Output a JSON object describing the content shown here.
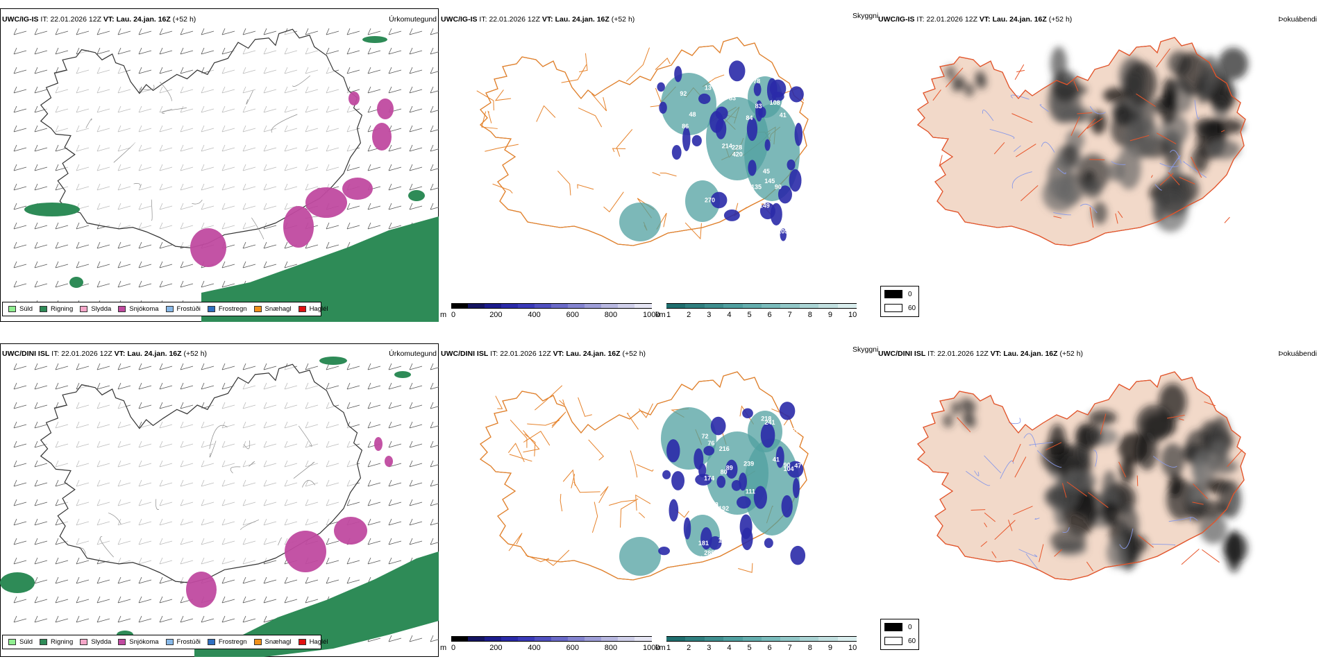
{
  "rows": [
    {
      "model": "UWC/IG-IS",
      "it_label": "IT:",
      "it_value": "22.01.2026 12Z",
      "vt_label": "VT:",
      "vt_value": "Lau. 24.jan. 16Z",
      "lead": "(+52 h)",
      "precip_title": "Úrkomutegund",
      "vis_title": "Skyggni",
      "fog_title": "Þokuábendi",
      "vis_numbers": [
        "214",
        "45",
        "83",
        "13",
        "130",
        "145",
        "149",
        "84",
        "108",
        "107",
        "41",
        "103",
        "80",
        "92",
        "420",
        "96",
        "83",
        "105",
        "228",
        "173",
        "270",
        "135",
        "86",
        "48",
        "52",
        "78",
        "90"
      ]
    },
    {
      "model": "UWC/DINI ISL",
      "it_label": "IT:",
      "it_value": "22.01.2026 12Z",
      "vt_label": "VT:",
      "vt_value": "Lau. 24.jan. 16Z",
      "lead": "(+52 h)",
      "precip_title": "Úrkomutegund",
      "vis_title": "Skyggni",
      "fog_title": "Þokuábendi",
      "vis_numbers": [
        "192",
        "181",
        "104",
        "76",
        "72",
        "162",
        "90",
        "130",
        "105",
        "89",
        "76",
        "108",
        "93",
        "174",
        "111",
        "104",
        "218",
        "216",
        "231",
        "239",
        "241",
        "285",
        "58",
        "47",
        "41",
        "90",
        "80",
        "127"
      ]
    }
  ],
  "precip_legend": [
    {
      "label": "Súld",
      "color": "#90ee90"
    },
    {
      "label": "Rigning",
      "color": "#2e8b57"
    },
    {
      "label": "Slydda",
      "color": "#f4a6c8"
    },
    {
      "label": "Snjókoma",
      "color": "#c04aa0"
    },
    {
      "label": "Frostúði",
      "color": "#87b8e8"
    },
    {
      "label": "Frostregn",
      "color": "#2f6fc0"
    },
    {
      "label": "Snæhagl",
      "color": "#f0901a"
    },
    {
      "label": "Haglél",
      "color": "#e01010"
    }
  ],
  "vis_colorbar_m": {
    "unit": "m",
    "ticks": [
      "0",
      "200",
      "400",
      "600",
      "800",
      "1000"
    ],
    "colors": [
      "#000000",
      "#141460",
      "#1c1c8c",
      "#2a2aa8",
      "#3a3ab8",
      "#5050c0",
      "#6a6ac8",
      "#8484d0",
      "#9e9ed8",
      "#b8b8e0",
      "#d0d0ea",
      "#e6e6f4"
    ]
  },
  "vis_colorbar_km": {
    "unit": "km",
    "ticks": [
      "1",
      "2",
      "3",
      "4",
      "5",
      "6",
      "7",
      "8",
      "9",
      "10"
    ],
    "colors": [
      "#1f6e6e",
      "#2f7f7f",
      "#3f8f8f",
      "#50a0a0",
      "#64aeae",
      "#7abcbc",
      "#92c8c8",
      "#aad4d4",
      "#c2e0e0",
      "#daeeee"
    ]
  },
  "fog_legend": [
    {
      "label": "0",
      "color": "#000000"
    },
    {
      "label": "60",
      "color": "#ffffff"
    }
  ]
}
